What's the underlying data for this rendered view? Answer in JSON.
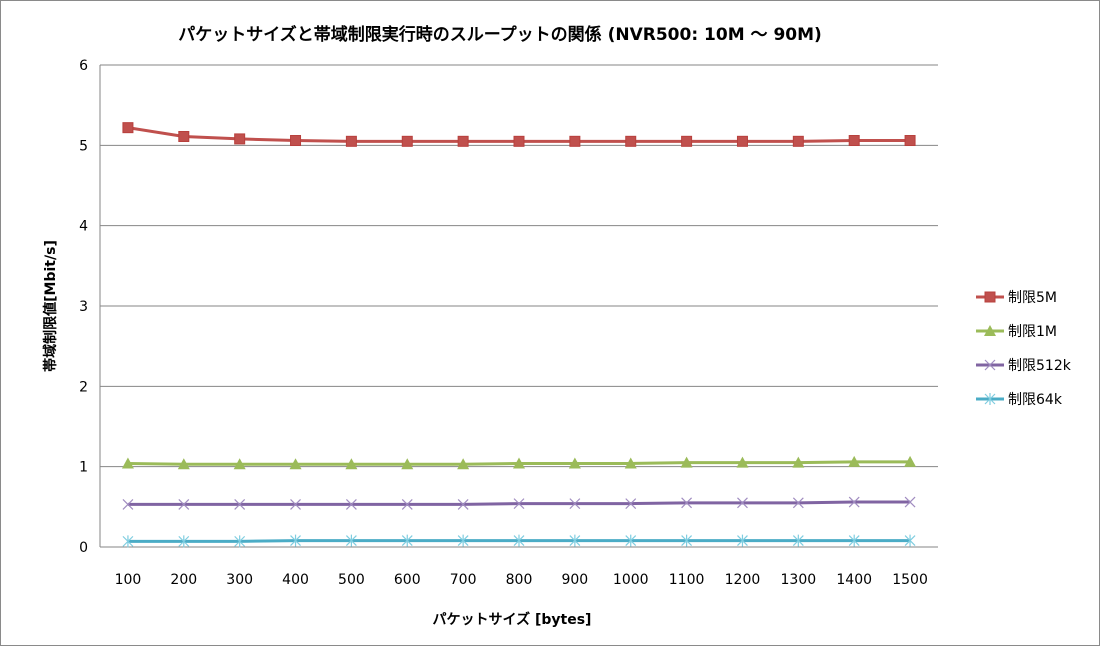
{
  "chart_data": {
    "type": "line",
    "title": "パケットサイズと帯域制限実行時のスループットの関係 (NVR500: 10M ～ 90M)",
    "xlabel": "パケットサイズ [bytes]",
    "ylabel": "帯域制限値[Mbit/s]",
    "categories": [
      "100",
      "200",
      "300",
      "400",
      "500",
      "600",
      "700",
      "800",
      "900",
      "1000",
      "1100",
      "1200",
      "1300",
      "1400",
      "1500"
    ],
    "ylim": [
      0,
      6
    ],
    "yticks": [
      "0",
      "1",
      "2",
      "3",
      "4",
      "5",
      "6"
    ],
    "grid": true,
    "legend_position": "right",
    "series": [
      {
        "name": "制限5M",
        "color": "#c0504d",
        "marker": "square",
        "values": [
          5.22,
          5.11,
          5.08,
          5.06,
          5.05,
          5.05,
          5.05,
          5.05,
          5.05,
          5.05,
          5.05,
          5.05,
          5.05,
          5.06,
          5.06
        ]
      },
      {
        "name": "制限1M",
        "color": "#9bbb59",
        "marker": "triangle",
        "values": [
          1.04,
          1.03,
          1.03,
          1.03,
          1.03,
          1.03,
          1.03,
          1.04,
          1.04,
          1.04,
          1.05,
          1.05,
          1.05,
          1.06,
          1.06
        ]
      },
      {
        "name": "制限512k",
        "color": "#8064a2",
        "marker": "x",
        "values": [
          0.53,
          0.53,
          0.53,
          0.53,
          0.53,
          0.53,
          0.53,
          0.54,
          0.54,
          0.54,
          0.55,
          0.55,
          0.55,
          0.56,
          0.56
        ]
      },
      {
        "name": "制限64k",
        "color": "#4bacc6",
        "marker": "star",
        "values": [
          0.07,
          0.07,
          0.07,
          0.08,
          0.08,
          0.08,
          0.08,
          0.08,
          0.08,
          0.08,
          0.08,
          0.08,
          0.08,
          0.08,
          0.08
        ]
      }
    ]
  }
}
